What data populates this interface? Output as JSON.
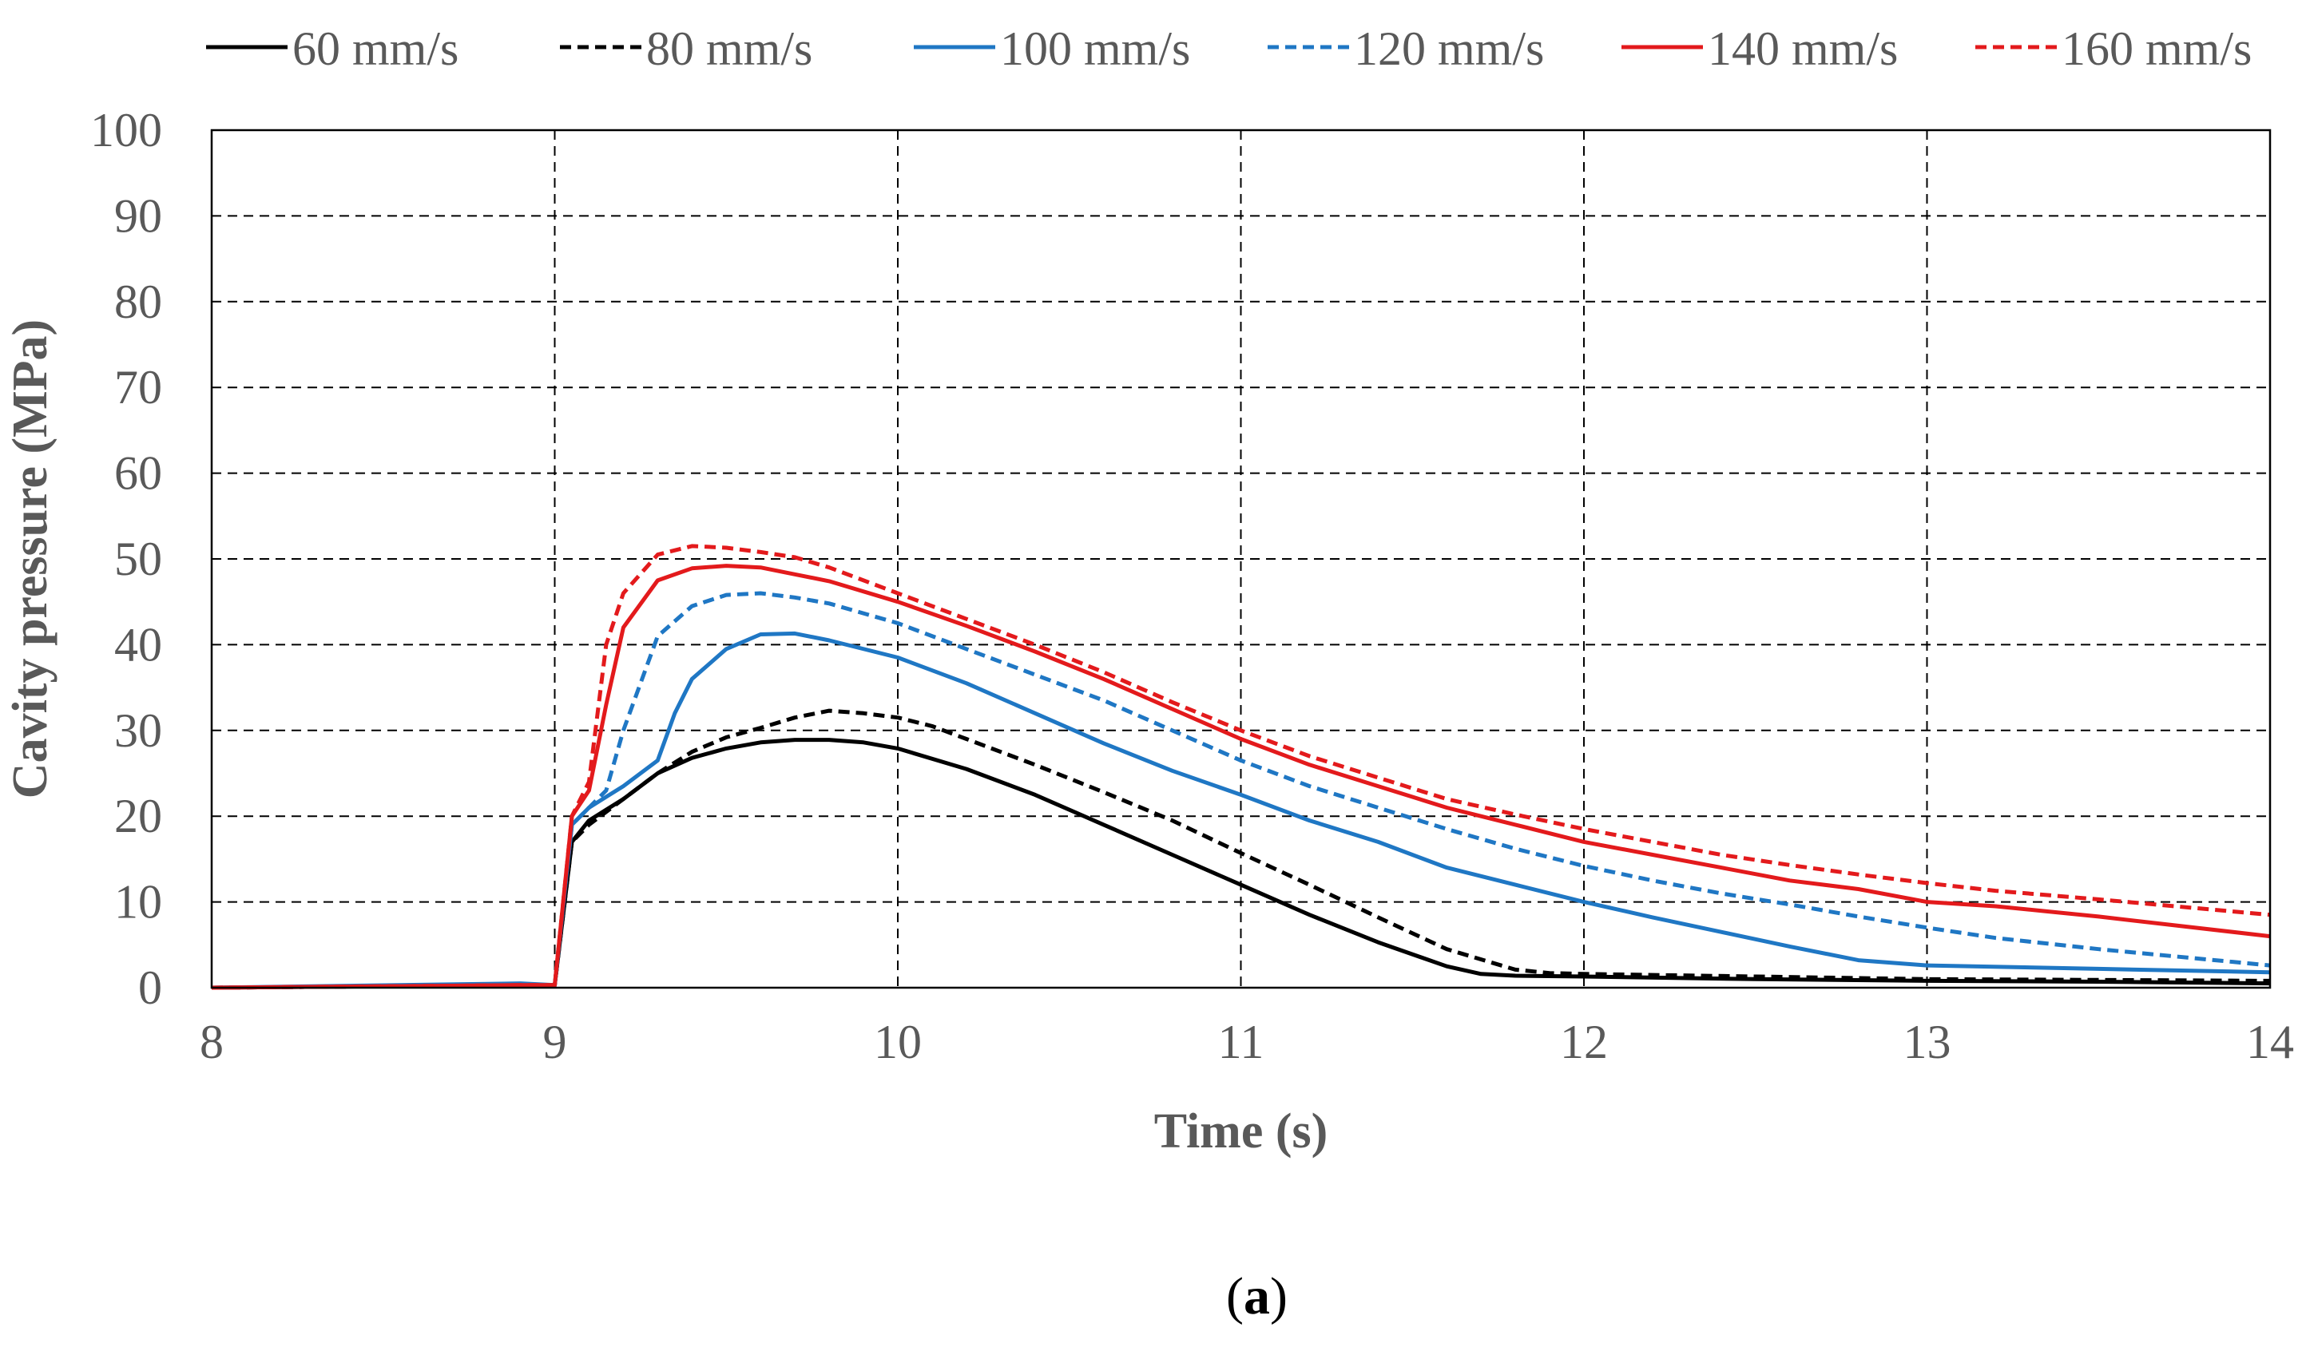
{
  "chart_data": {
    "type": "line",
    "title": "",
    "xlabel": "Time (s)",
    "ylabel": "Cavity pressure (MPa)",
    "xlim": [
      8,
      14
    ],
    "ylim": [
      0,
      100
    ],
    "x_ticks": [
      8,
      9,
      10,
      11,
      12,
      13,
      14
    ],
    "y_ticks": [
      0,
      10,
      20,
      30,
      40,
      50,
      60,
      70,
      80,
      90,
      100
    ],
    "grid": true,
    "legend_position": "top",
    "caption": {
      "open": "(",
      "letter": "a",
      "close": ")"
    },
    "series": [
      {
        "name": "60 mm/s",
        "color": "#000000",
        "dash": "solid",
        "points": [
          [
            8,
            0
          ],
          [
            8.9,
            0.3
          ],
          [
            9.0,
            0.3
          ],
          [
            9.05,
            17
          ],
          [
            9.1,
            19.5
          ],
          [
            9.2,
            22
          ],
          [
            9.3,
            25
          ],
          [
            9.4,
            26.8
          ],
          [
            9.5,
            27.9
          ],
          [
            9.6,
            28.6
          ],
          [
            9.7,
            28.9
          ],
          [
            9.8,
            28.9
          ],
          [
            9.9,
            28.6
          ],
          [
            10.0,
            27.9
          ],
          [
            10.2,
            25.5
          ],
          [
            10.4,
            22.5
          ],
          [
            10.6,
            19
          ],
          [
            10.8,
            15.5
          ],
          [
            11.0,
            12
          ],
          [
            11.2,
            8.5
          ],
          [
            11.4,
            5.3
          ],
          [
            11.6,
            2.5
          ],
          [
            11.7,
            1.6
          ],
          [
            11.8,
            1.4
          ],
          [
            12.0,
            1.3
          ],
          [
            12.5,
            1.0
          ],
          [
            13.0,
            0.8
          ],
          [
            13.5,
            0.7
          ],
          [
            14.0,
            0.5
          ]
        ]
      },
      {
        "name": "80 mm/s",
        "color": "#000000",
        "dash": "dashed",
        "points": [
          [
            8,
            0
          ],
          [
            8.9,
            0.3
          ],
          [
            9.0,
            0.3
          ],
          [
            9.05,
            17
          ],
          [
            9.1,
            19
          ],
          [
            9.2,
            22
          ],
          [
            9.3,
            25
          ],
          [
            9.4,
            27.5
          ],
          [
            9.5,
            29.2
          ],
          [
            9.6,
            30.3
          ],
          [
            9.7,
            31.5
          ],
          [
            9.8,
            32.3
          ],
          [
            9.9,
            32
          ],
          [
            10.0,
            31.5
          ],
          [
            10.1,
            30.5
          ],
          [
            10.2,
            29
          ],
          [
            10.4,
            26
          ],
          [
            10.6,
            22.8
          ],
          [
            10.8,
            19.5
          ],
          [
            11.0,
            15.7
          ],
          [
            11.2,
            12
          ],
          [
            11.4,
            8.2
          ],
          [
            11.6,
            4.5
          ],
          [
            11.8,
            2.1
          ],
          [
            11.9,
            1.7
          ],
          [
            12.0,
            1.6
          ],
          [
            12.5,
            1.3
          ],
          [
            13.0,
            1.0
          ],
          [
            13.5,
            0.9
          ],
          [
            14.0,
            0.8
          ]
        ]
      },
      {
        "name": "100 mm/s",
        "color": "#1f77c4",
        "dash": "solid",
        "points": [
          [
            8,
            0
          ],
          [
            8.9,
            0.5
          ],
          [
            9.0,
            0.3
          ],
          [
            9.05,
            19
          ],
          [
            9.1,
            21
          ],
          [
            9.2,
            23.5
          ],
          [
            9.3,
            26.5
          ],
          [
            9.35,
            32
          ],
          [
            9.4,
            36
          ],
          [
            9.5,
            39.5
          ],
          [
            9.6,
            41.2
          ],
          [
            9.7,
            41.3
          ],
          [
            9.8,
            40.5
          ],
          [
            10.0,
            38.5
          ],
          [
            10.2,
            35.5
          ],
          [
            10.4,
            32
          ],
          [
            10.6,
            28.5
          ],
          [
            10.8,
            25.3
          ],
          [
            11.0,
            22.5
          ],
          [
            11.2,
            19.5
          ],
          [
            11.4,
            17
          ],
          [
            11.6,
            14
          ],
          [
            11.8,
            12
          ],
          [
            12.0,
            10
          ],
          [
            12.2,
            8.2
          ],
          [
            12.4,
            6.5
          ],
          [
            12.6,
            4.8
          ],
          [
            12.8,
            3.2
          ],
          [
            13.0,
            2.6
          ],
          [
            13.5,
            2.2
          ],
          [
            14.0,
            1.8
          ]
        ]
      },
      {
        "name": "120 mm/s",
        "color": "#1f77c4",
        "dash": "dashed",
        "points": [
          [
            8,
            0
          ],
          [
            8.9,
            0.3
          ],
          [
            9.0,
            0.3
          ],
          [
            9.05,
            19
          ],
          [
            9.1,
            21
          ],
          [
            9.15,
            23
          ],
          [
            9.2,
            30
          ],
          [
            9.3,
            41
          ],
          [
            9.4,
            44.5
          ],
          [
            9.5,
            45.8
          ],
          [
            9.6,
            46
          ],
          [
            9.7,
            45.5
          ],
          [
            9.8,
            44.8
          ],
          [
            10.0,
            42.5
          ],
          [
            10.2,
            39.5
          ],
          [
            10.4,
            36.5
          ],
          [
            10.6,
            33.5
          ],
          [
            10.8,
            30
          ],
          [
            11.0,
            26.5
          ],
          [
            11.2,
            23.5
          ],
          [
            11.4,
            21
          ],
          [
            11.6,
            18.5
          ],
          [
            11.8,
            16.2
          ],
          [
            12.0,
            14.2
          ],
          [
            12.2,
            12.5
          ],
          [
            12.4,
            11
          ],
          [
            12.6,
            9.7
          ],
          [
            12.8,
            8.3
          ],
          [
            13.0,
            7
          ],
          [
            13.2,
            5.8
          ],
          [
            13.5,
            4.5
          ],
          [
            14.0,
            2.6
          ]
        ]
      },
      {
        "name": "140 mm/s",
        "color": "#e31a1c",
        "dash": "solid",
        "points": [
          [
            8,
            0
          ],
          [
            8.9,
            0.3
          ],
          [
            9.0,
            0.3
          ],
          [
            9.05,
            20
          ],
          [
            9.1,
            23
          ],
          [
            9.15,
            33
          ],
          [
            9.2,
            42
          ],
          [
            9.3,
            47.5
          ],
          [
            9.4,
            48.9
          ],
          [
            9.5,
            49.2
          ],
          [
            9.6,
            49
          ],
          [
            9.7,
            48.2
          ],
          [
            9.8,
            47.4
          ],
          [
            10.0,
            45
          ],
          [
            10.2,
            42.2
          ],
          [
            10.4,
            39.2
          ],
          [
            10.6,
            36
          ],
          [
            10.8,
            32.5
          ],
          [
            11.0,
            29
          ],
          [
            11.2,
            26
          ],
          [
            11.4,
            23.5
          ],
          [
            11.6,
            21
          ],
          [
            11.8,
            19
          ],
          [
            12.0,
            17
          ],
          [
            12.2,
            15.5
          ],
          [
            12.4,
            14
          ],
          [
            12.6,
            12.5
          ],
          [
            12.8,
            11.5
          ],
          [
            13.0,
            10
          ],
          [
            13.2,
            9.5
          ],
          [
            13.5,
            8.3
          ],
          [
            14.0,
            6
          ]
        ]
      },
      {
        "name": "160 mm/s",
        "color": "#e31a1c",
        "dash": "dashed",
        "points": [
          [
            8,
            0
          ],
          [
            8.9,
            0.3
          ],
          [
            9.0,
            0.3
          ],
          [
            9.05,
            20
          ],
          [
            9.1,
            24
          ],
          [
            9.15,
            40
          ],
          [
            9.2,
            46
          ],
          [
            9.3,
            50.5
          ],
          [
            9.4,
            51.5
          ],
          [
            9.5,
            51.3
          ],
          [
            9.6,
            50.8
          ],
          [
            9.7,
            50.2
          ],
          [
            9.8,
            49
          ],
          [
            10.0,
            46
          ],
          [
            10.2,
            43
          ],
          [
            10.4,
            40
          ],
          [
            10.6,
            36.8
          ],
          [
            10.8,
            33.3
          ],
          [
            11.0,
            30
          ],
          [
            11.2,
            27
          ],
          [
            11.4,
            24.5
          ],
          [
            11.6,
            22
          ],
          [
            11.8,
            20.2
          ],
          [
            12.0,
            18.5
          ],
          [
            12.2,
            17
          ],
          [
            12.4,
            15.5
          ],
          [
            12.6,
            14.3
          ],
          [
            12.8,
            13.2
          ],
          [
            13.0,
            12.2
          ],
          [
            13.2,
            11.3
          ],
          [
            13.5,
            10.3
          ],
          [
            14.0,
            8.5
          ]
        ]
      }
    ]
  }
}
